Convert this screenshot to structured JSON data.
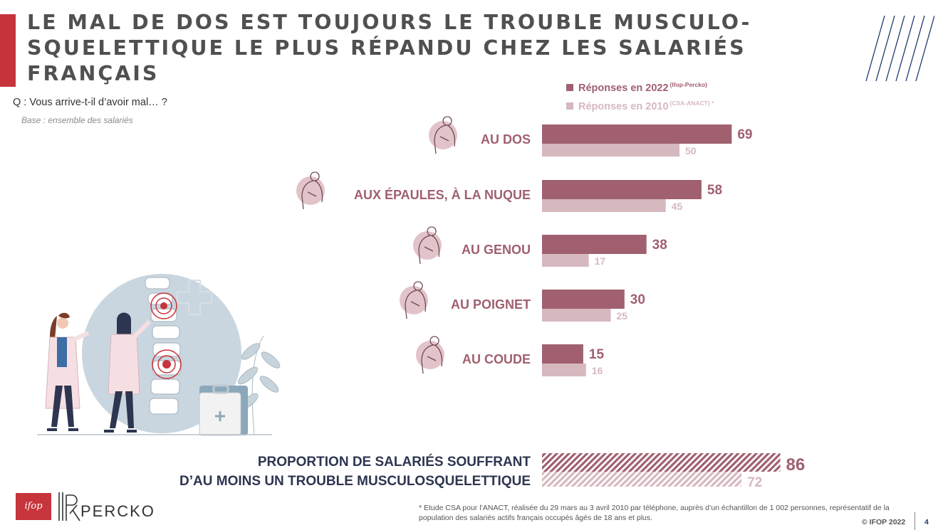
{
  "title": "LE MAL DE DOS EST TOUJOURS LE TROUBLE MUSCULO-SQUELETTIQUE LE PLUS RÉPANDU CHEZ LES SALARIÉS FRANÇAIS",
  "question": "Q : Vous arrive-t-il d’avoir mal… ?",
  "base": "Base : ensemble des salariés",
  "legend": {
    "series_2022": "Réponses en 2022",
    "series_2022_source": "(Ifop-Percko)",
    "series_2010": "Réponses en 2010",
    "series_2010_source": "(CSA-ANACT) *"
  },
  "colors": {
    "accent_red": "#c6343c",
    "series_2022": "#a0606f",
    "series_2010": "#d6b8bf",
    "summary_label": "#2e3550",
    "text_dark": "#505050"
  },
  "chart_data": {
    "type": "bar",
    "orientation": "horizontal",
    "categories": [
      "AU DOS",
      "AUX ÉPAULES, À LA NUQUE",
      "AU GENOU",
      "AU POIGNET",
      "AU COUDE"
    ],
    "category_icons": [
      "back-pain-icon",
      "shoulder-neck-pain-icon",
      "knee-pain-icon",
      "wrist-pain-icon",
      "elbow-pain-icon"
    ],
    "series": [
      {
        "name": "Réponses en 2022",
        "values": [
          69,
          58,
          38,
          30,
          15
        ]
      },
      {
        "name": "Réponses en 2010",
        "values": [
          50,
          45,
          17,
          25,
          16
        ]
      }
    ],
    "summary": {
      "label_line1": "PROPORTION DE SALARIÉS SOUFFRANT",
      "label_line2": "D’AU MOINS UN TROUBLE MUSCULOSQUELETTIQUE",
      "values": [
        86,
        72
      ],
      "pattern": "hatched"
    },
    "xlim": [
      0,
      100
    ],
    "value_labels": true,
    "legend_position": "top"
  },
  "logos": {
    "ifop": "ifop",
    "percko": "PERCKO"
  },
  "footnote": "* Etude CSA pour l’ANACT, réalisée du 29 mars au 3 avril 2010 par téléphone, auprès d’un échantillon de 1 002 personnes, représentatif de la population des salariés actifs français occupés âgés de 18 ans et plus.",
  "copyright": "© IFOP 2022",
  "page_number": "4"
}
